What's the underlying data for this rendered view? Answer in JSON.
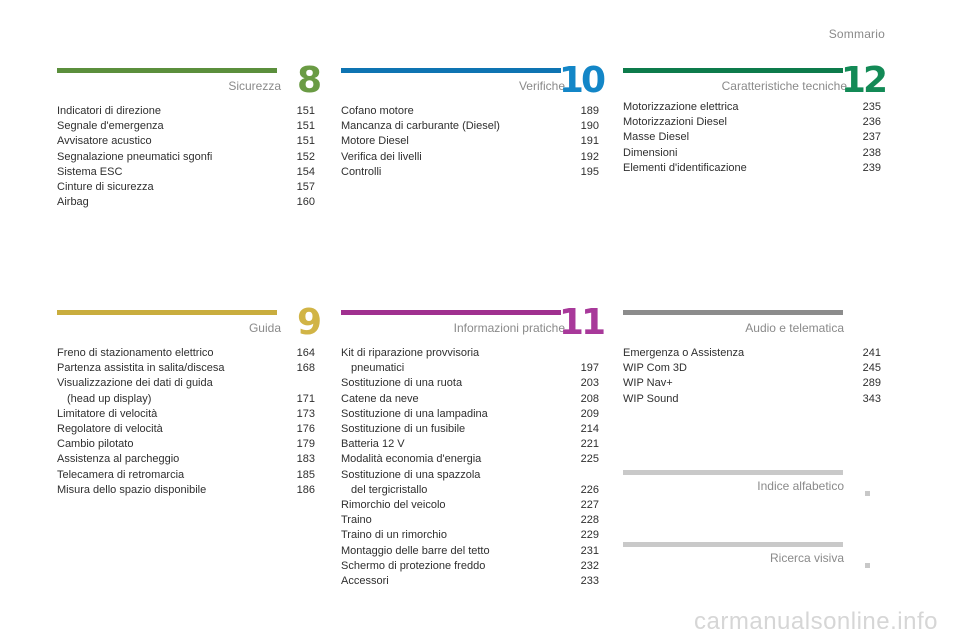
{
  "header": {
    "title": "Sommario"
  },
  "sections": {
    "sicurezza": {
      "number": "8",
      "title": "Sicurezza",
      "color": "#5b8f3c",
      "items": [
        {
          "label": "Indicatori di direzione",
          "page": "151"
        },
        {
          "label": "Segnale d'emergenza",
          "page": "151"
        },
        {
          "label": "Avvisatore acustico",
          "page": "151"
        },
        {
          "label": "Segnalazione pneumatici sgonfi",
          "page": "152"
        },
        {
          "label": "Sistema ESC",
          "page": "154"
        },
        {
          "label": "Cinture di sicurezza",
          "page": "157"
        },
        {
          "label": "Airbag",
          "page": "160"
        }
      ]
    },
    "verifiche": {
      "number": "10",
      "title": "Verifiche",
      "color": "#0e74b2",
      "items": [
        {
          "label": "Cofano motore",
          "page": "189"
        },
        {
          "label": "Mancanza di carburante (Diesel)",
          "page": "190"
        },
        {
          "label": "Motore Diesel",
          "page": "191"
        },
        {
          "label": "Verifica dei livelli",
          "page": "192"
        },
        {
          "label": "Controlli",
          "page": "195"
        }
      ]
    },
    "caratteristiche": {
      "number": "12",
      "title": "Caratteristiche tecniche",
      "color": "#0d7b4b",
      "items": [
        {
          "label": "Motorizzazione elettrica",
          "page": "235"
        },
        {
          "label": "Motorizzazioni Diesel",
          "page": "236"
        },
        {
          "label": "Masse Diesel",
          "page": "237"
        },
        {
          "label": "Dimensioni",
          "page": "238"
        },
        {
          "label": "Elementi d'identificazione",
          "page": "239"
        }
      ]
    },
    "guida": {
      "number": "9",
      "title": "Guida",
      "color": "#c9ad3e",
      "items": [
        {
          "label": "Freno di stazionamento elettrico",
          "page": "164"
        },
        {
          "label": "Partenza assistita in salita/discesa",
          "page": "168"
        },
        {
          "label": "Visualizzazione dei dati di guida",
          "sub": "(head up display)",
          "page": "171"
        },
        {
          "label": "Limitatore di velocità",
          "page": "173"
        },
        {
          "label": "Regolatore di velocità",
          "page": "176"
        },
        {
          "label": "Cambio pilotato",
          "page": "179"
        },
        {
          "label": "Assistenza al parcheggio",
          "page": "183"
        },
        {
          "label": "Telecamera di retromarcia",
          "page": "185"
        },
        {
          "label": "Misura dello spazio disponibile",
          "page": "186"
        }
      ]
    },
    "info": {
      "number": "11",
      "title": "Informazioni pratiche",
      "color": "#a0308f",
      "items": [
        {
          "label": "Kit di riparazione provvisoria",
          "sub": "pneumatici",
          "page": "197"
        },
        {
          "label": "Sostituzione di una ruota",
          "page": "203"
        },
        {
          "label": "Catene da neve",
          "page": "208"
        },
        {
          "label": "Sostituzione di una lampadina",
          "page": "209"
        },
        {
          "label": "Sostituzione di un fusibile",
          "page": "214"
        },
        {
          "label": "Batteria 12 V",
          "page": "221"
        },
        {
          "label": "Modalità economia d'energia",
          "page": "225"
        },
        {
          "label": "Sostituzione di una spazzola",
          "sub": "del tergicristallo",
          "page": "226"
        },
        {
          "label": "Rimorchio del veicolo",
          "page": "227"
        },
        {
          "label": "Traino",
          "page": "228"
        },
        {
          "label": "Traino di un rimorchio",
          "page": "229"
        },
        {
          "label": "Montaggio delle barre del tetto",
          "page": "231"
        },
        {
          "label": "Schermo di protezione freddo",
          "page": "232"
        },
        {
          "label": "Accessori",
          "page": "233"
        }
      ]
    },
    "audio": {
      "title": "Audio e telematica",
      "color": "#8c8c8c",
      "items": [
        {
          "label": "Emergenza o Assistenza",
          "page": "241"
        },
        {
          "label": "WIP Com 3D",
          "page": "245"
        },
        {
          "label": "WIP Nav+",
          "page": "289"
        },
        {
          "label": "WIP Sound",
          "page": "343"
        }
      ]
    }
  },
  "links": {
    "indice": {
      "title": "Indice alfabetico"
    },
    "ricerca": {
      "title": "Ricerca visiva"
    }
  },
  "watermark": "carmanualsonline.info"
}
